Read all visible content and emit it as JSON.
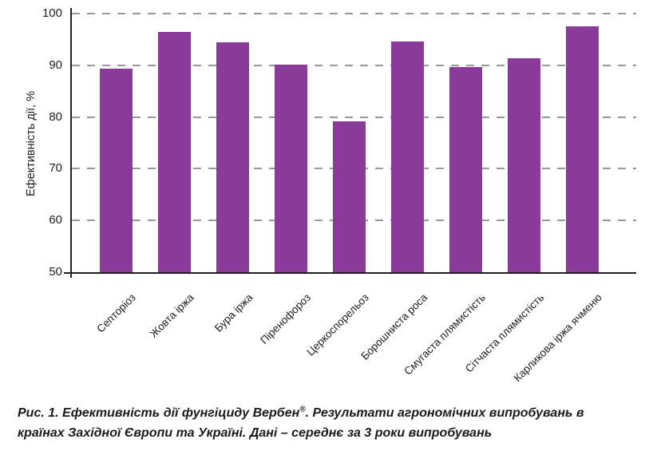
{
  "chart_data": {
    "type": "bar",
    "categories": [
      "Септоріоз",
      "Жовта іржа",
      "Бура іржа",
      "Піренофороз",
      "Церкоспорельоз",
      "Борошниста роса",
      "Смугаста плямистість",
      "Сітчаста плямистість",
      "Карликова іржа ячменю"
    ],
    "values": [
      89.4,
      96.5,
      94.5,
      90.2,
      79.2,
      94.6,
      89.6,
      91.4,
      97.6
    ],
    "title": "",
    "xlabel": "",
    "ylabel": "Ефективність дії, %",
    "ylim": [
      50,
      100
    ],
    "yticks": [
      50,
      60,
      70,
      80,
      90,
      100
    ],
    "grid": "horizontal dashed",
    "legend": "none",
    "bar_color": "#8A3A99",
    "grid_color": "#999999",
    "axis_color": "#1f1f1f",
    "text_color": "#1f1f1f"
  },
  "caption": {
    "part1": "Рис. 1. Ефективність дії фунгіциду Вербен",
    "sup": "®",
    "part2": ". Результати агрономічних випробувань в країнах Західної Європи та Україні. Дані – середнє за 3 роки випробувань"
  }
}
